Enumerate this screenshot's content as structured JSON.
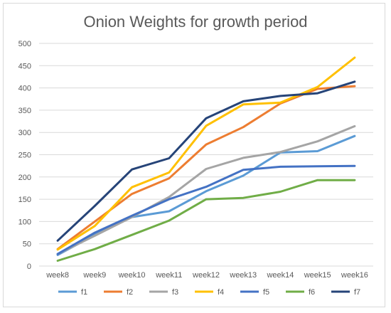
{
  "chart_data": {
    "type": "line",
    "title": "Onion Weights for growth period",
    "xlabel": "",
    "ylabel": "",
    "categories": [
      "week8",
      "week9",
      "week10",
      "week11",
      "week12",
      "week13",
      "week14",
      "week15",
      "week16"
    ],
    "ylim": [
      0,
      500
    ],
    "yticks": [
      0,
      50,
      100,
      150,
      200,
      250,
      300,
      350,
      400,
      450,
      500
    ],
    "grid": true,
    "legend": "bottom",
    "series": [
      {
        "name": "f1",
        "color": "#5B9BD5",
        "values": [
          25,
          70,
          110,
          123,
          168,
          203,
          255,
          258,
          292
        ]
      },
      {
        "name": "f2",
        "color": "#ED7D31",
        "values": [
          38,
          100,
          162,
          197,
          273,
          312,
          365,
          398,
          404
        ]
      },
      {
        "name": "f3",
        "color": "#A5A5A5",
        "values": [
          27,
          68,
          110,
          155,
          218,
          243,
          256,
          280,
          314
        ]
      },
      {
        "name": "f4",
        "color": "#FFC000",
        "values": [
          37,
          90,
          177,
          210,
          315,
          363,
          367,
          402,
          468
        ]
      },
      {
        "name": "f5",
        "color": "#4472C4",
        "values": [
          27,
          75,
          113,
          150,
          178,
          216,
          223,
          224,
          225
        ]
      },
      {
        "name": "f6",
        "color": "#70AD47",
        "values": [
          12,
          38,
          70,
          102,
          150,
          153,
          167,
          193,
          193
        ]
      },
      {
        "name": "f7",
        "color": "#264478",
        "values": [
          57,
          135,
          217,
          242,
          332,
          370,
          382,
          388,
          414
        ]
      }
    ]
  }
}
